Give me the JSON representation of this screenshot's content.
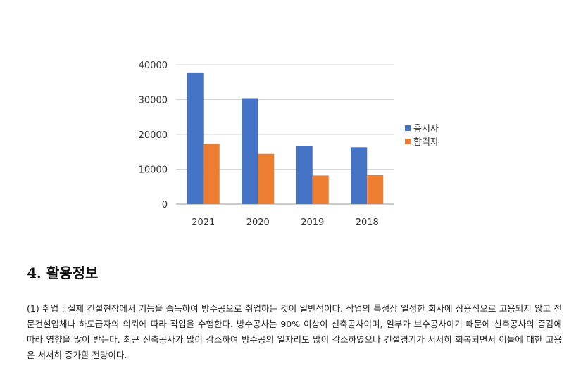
{
  "chart_data": {
    "type": "bar",
    "categories": [
      "2021",
      "2020",
      "2019",
      "2018"
    ],
    "series": [
      {
        "name": "응시자",
        "values": [
          37600,
          30400,
          16600,
          16300
        ],
        "color": "#4472C4"
      },
      {
        "name": "합격자",
        "values": [
          17300,
          14400,
          8200,
          8300
        ],
        "color": "#ED7D31"
      }
    ],
    "y_ticks": [
      "0",
      "10000",
      "20000",
      "30000",
      "40000"
    ],
    "ylim": [
      0,
      40000
    ],
    "grid": true,
    "legend_position": "right"
  },
  "section": {
    "heading": "4. 활용정보",
    "paragraph": "(1) 취업 : 실제 건설현장에서 기능을 습득하여 방수공으로 취업하는 것이 일반적이다. 작업의 특성상 일정한 회사에 상용직으로 고용되지 않고 전문건설업체나 하도급자의 의뢰에 따라 작업을 수행한다. 방수공사는 90% 이상이 신축공사이며, 일부가 보수공사이기 때문에 신축공사의 증감에 따라 영향을 많이 받는다. 최근 신축공사가 많이 감소하여 방수공의 일자리도 많이 감소하였으나 건설경기가 서서히 회복되면서 이들에 대한 고용은 서서히 증가할 전망이다."
  }
}
